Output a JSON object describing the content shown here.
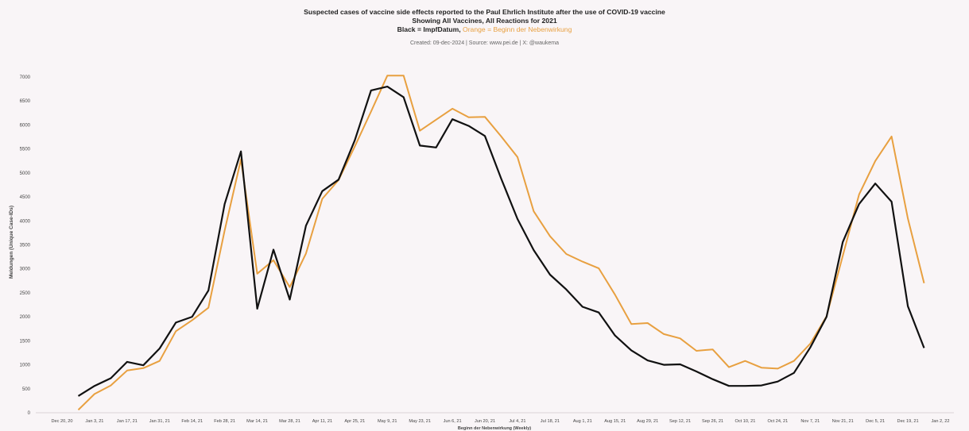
{
  "titles": {
    "line1": "Suspected cases of vaccine side effects reported to the Paul Ehrlich Institute after the use of COVID-19 vaccine",
    "line2": "Showing All Vaccines, All Reactions for 2021",
    "line3_black": "Black = ImpfDatum,",
    "line3_orange": "Orange = Beginn der Nebenwirkung",
    "caption": "Created: 09-dec-2024 | Source: www.pei.de | X: @waukema"
  },
  "colors": {
    "background": "#f9f5f7",
    "black_series": "#111111",
    "orange_series": "#e8a040",
    "grid": "#e6e0e3"
  },
  "chart_data": {
    "type": "line",
    "xlabel": "Beginn der Nebenwirkung (Weekly)",
    "ylabel": "Meldungen (Unique Case-IDs)",
    "ylim": [
      0,
      7000
    ],
    "yticks": [
      0,
      500,
      1000,
      1500,
      2000,
      2500,
      3000,
      3500,
      4000,
      4500,
      5000,
      5500,
      6000,
      6500,
      7000
    ],
    "xtick_labels": [
      "Dec 20, 20",
      "Jan 3, 21",
      "Jan 17, 21",
      "Jan 31, 21",
      "Feb 14, 21",
      "Feb 28, 21",
      "Mar 14, 21",
      "Mar 28, 21",
      "Apr 11, 21",
      "Apr 25, 21",
      "May 9, 21",
      "May 23, 21",
      "Jun 6, 21",
      "Jun 20, 21",
      "Jul 4, 21",
      "Jul 18, 21",
      "Aug 1, 21",
      "Aug 15, 21",
      "Aug 29, 21",
      "Sep 12, 21",
      "Sep 26, 21",
      "Oct 10, 21",
      "Oct 24, 21",
      "Nov 7, 21",
      "Nov 21, 21",
      "Dec 5, 21",
      "Dec 19, 21",
      "Jan 2, 22"
    ],
    "x": [
      "Dec 27, 20",
      "Jan 3, 21",
      "Jan 10, 21",
      "Jan 17, 21",
      "Jan 24, 21",
      "Jan 31, 21",
      "Feb 7, 21",
      "Feb 14, 21",
      "Feb 21, 21",
      "Feb 28, 21",
      "Mar 7, 21",
      "Mar 14, 21",
      "Mar 21, 21",
      "Mar 28, 21",
      "Apr 4, 21",
      "Apr 11, 21",
      "Apr 18, 21",
      "Apr 25, 21",
      "May 2, 21",
      "May 9, 21",
      "May 16, 21",
      "May 23, 21",
      "May 30, 21",
      "Jun 6, 21",
      "Jun 13, 21",
      "Jun 20, 21",
      "Jun 27, 21",
      "Jul 4, 21",
      "Jul 11, 21",
      "Jul 18, 21",
      "Jul 25, 21",
      "Aug 1, 21",
      "Aug 8, 21",
      "Aug 15, 21",
      "Aug 22, 21",
      "Aug 29, 21",
      "Sep 5, 21",
      "Sep 12, 21",
      "Sep 19, 21",
      "Sep 26, 21",
      "Oct 3, 21",
      "Oct 10, 21",
      "Oct 17, 21",
      "Oct 24, 21",
      "Oct 31, 21",
      "Nov 7, 21",
      "Nov 14, 21",
      "Nov 21, 21",
      "Nov 28, 21",
      "Dec 5, 21",
      "Dec 12, 21",
      "Dec 19, 21",
      "Dec 26, 21"
    ],
    "series": [
      {
        "name": "ImpfDatum",
        "color": "#111111",
        "values": [
          350,
          560,
          720,
          1060,
          990,
          1340,
          1880,
          2000,
          2550,
          4350,
          5450,
          2170,
          3400,
          2360,
          3900,
          4620,
          4860,
          5680,
          6720,
          6800,
          6580,
          5570,
          5530,
          6120,
          5980,
          5770,
          4880,
          4040,
          3390,
          2880,
          2570,
          2210,
          2090,
          1610,
          1300,
          1090,
          1000,
          1010,
          860,
          700,
          560,
          560,
          570,
          650,
          830,
          1360,
          2000,
          3560,
          4350,
          4780,
          4400,
          2220,
          1350
        ]
      },
      {
        "name": "Beginn der Nebenwirkung",
        "color": "#e8a040",
        "values": [
          60,
          390,
          570,
          880,
          930,
          1080,
          1700,
          1930,
          2190,
          3800,
          5280,
          2900,
          3180,
          2620,
          3320,
          4460,
          4850,
          5550,
          6280,
          7030,
          7030,
          5880,
          6110,
          6340,
          6160,
          6170,
          5760,
          5330,
          4200,
          3680,
          3310,
          3150,
          3010,
          2460,
          1850,
          1870,
          1640,
          1550,
          1290,
          1320,
          950,
          1080,
          940,
          920,
          1080,
          1440,
          2010,
          3270,
          4550,
          5250,
          5760,
          4050,
          2700
        ]
      }
    ]
  }
}
